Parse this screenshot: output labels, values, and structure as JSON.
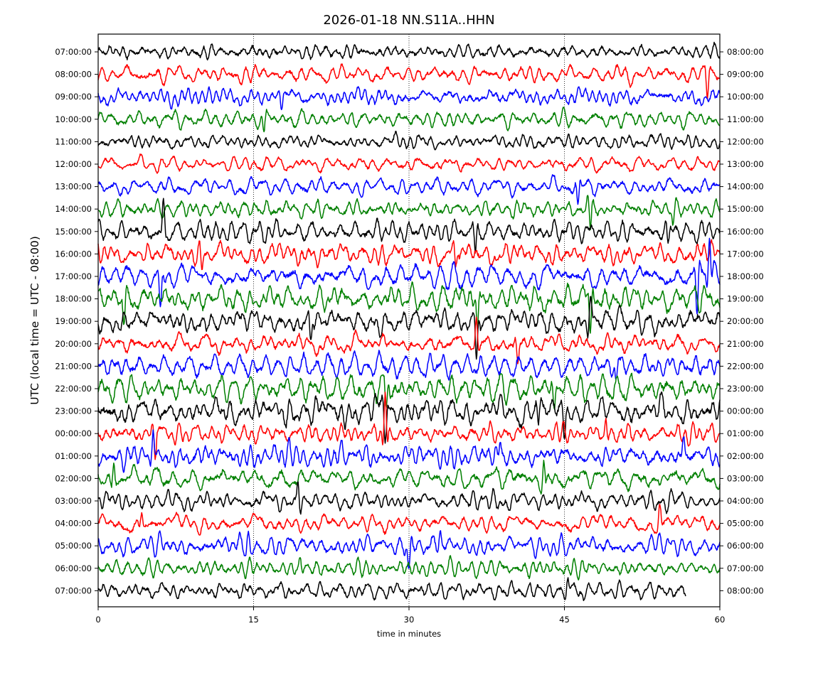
{
  "chart_data": {
    "type": "line",
    "title": "2026-01-18 NN.S11A..HHN",
    "xlabel": "time in minutes",
    "ylabel": "UTC (local time = UTC - 08:00)",
    "xlim": [
      0,
      60
    ],
    "x_ticks": [
      "0",
      "15",
      "30",
      "45",
      "60"
    ],
    "x_tick_values": [
      0,
      15,
      30,
      45,
      60
    ],
    "vertical_gridlines_at": [
      15,
      30,
      45
    ],
    "grid": "dotted vertical lines",
    "left_tick_labels": [
      "07:00:00",
      "08:00:00",
      "09:00:00",
      "10:00:00",
      "11:00:00",
      "12:00:00",
      "13:00:00",
      "14:00:00",
      "15:00:00",
      "16:00:00",
      "17:00:00",
      "18:00:00",
      "19:00:00",
      "20:00:00",
      "21:00:00",
      "22:00:00",
      "23:00:00",
      "00:00:00",
      "01:00:00",
      "02:00:00",
      "03:00:00",
      "04:00:00",
      "05:00:00",
      "06:00:00",
      "07:00:00"
    ],
    "right_tick_labels": [
      "08:00:00",
      "09:00:00",
      "10:00:00",
      "11:00:00",
      "12:00:00",
      "13:00:00",
      "14:00:00",
      "15:00:00",
      "16:00:00",
      "17:00:00",
      "18:00:00",
      "19:00:00",
      "20:00:00",
      "21:00:00",
      "22:00:00",
      "23:00:00",
      "00:00:00",
      "01:00:00",
      "02:00:00",
      "03:00:00",
      "04:00:00",
      "05:00:00",
      "06:00:00",
      "07:00:00",
      "08:00:00"
    ],
    "trace_colors": [
      "#000000",
      "#ff0000",
      "#0000ff",
      "#008000"
    ],
    "traces": [
      {
        "color": "#000000",
        "end_minute": 60,
        "amplitude": 0.35,
        "events": []
      },
      {
        "color": "#ff0000",
        "end_minute": 60,
        "amplitude": 0.35,
        "events": [
          {
            "t": 58.8,
            "a": -0.9
          }
        ]
      },
      {
        "color": "#0000ff",
        "end_minute": 60,
        "amplitude": 0.35,
        "events": [
          {
            "t": 17.7,
            "a": -0.5
          }
        ]
      },
      {
        "color": "#008000",
        "end_minute": 60,
        "amplitude": 0.35,
        "events": [
          {
            "t": 16.0,
            "a": -0.6
          }
        ]
      },
      {
        "color": "#000000",
        "end_minute": 60,
        "amplitude": 0.3,
        "events": []
      },
      {
        "color": "#ff0000",
        "end_minute": 60,
        "amplitude": 0.3,
        "events": []
      },
      {
        "color": "#0000ff",
        "end_minute": 60,
        "amplitude": 0.35,
        "events": [
          {
            "t": 46.3,
            "a": -0.8
          }
        ]
      },
      {
        "color": "#008000",
        "end_minute": 60,
        "amplitude": 0.35,
        "events": [
          {
            "t": 47.5,
            "a": -1.0
          },
          {
            "t": 55.5,
            "a": -0.5
          }
        ]
      },
      {
        "color": "#000000",
        "end_minute": 60,
        "amplitude": 0.45,
        "events": [
          {
            "t": 6.3,
            "a": 1.0
          },
          {
            "t": 36.4,
            "a": -1.0
          },
          {
            "t": 55.0,
            "a": -0.8
          }
        ]
      },
      {
        "color": "#ff0000",
        "end_minute": 60,
        "amplitude": 0.45,
        "events": [
          {
            "t": 10.0,
            "a": -0.7
          },
          {
            "t": 34.5,
            "a": -0.8
          }
        ]
      },
      {
        "color": "#0000ff",
        "end_minute": 60,
        "amplitude": 0.5,
        "events": [
          {
            "t": 6.0,
            "a": -1.2
          },
          {
            "t": 57.8,
            "a": -1.6
          },
          {
            "t": 59.0,
            "a": 1.6
          }
        ]
      },
      {
        "color": "#008000",
        "end_minute": 60,
        "amplitude": 0.55,
        "events": [
          {
            "t": 2.5,
            "a": -1.0
          },
          {
            "t": 36.6,
            "a": -1.2
          },
          {
            "t": 47.5,
            "a": -1.5
          }
        ]
      },
      {
        "color": "#000000",
        "end_minute": 60,
        "amplitude": 0.5,
        "events": [
          {
            "t": 20.5,
            "a": -1.0
          },
          {
            "t": 36.5,
            "a": -1.3
          },
          {
            "t": 47.5,
            "a": 1.0
          }
        ]
      },
      {
        "color": "#ff0000",
        "end_minute": 60,
        "amplitude": 0.4,
        "events": [
          {
            "t": 36.5,
            "a": 1.0
          },
          {
            "t": 40.5,
            "a": -0.8
          }
        ]
      },
      {
        "color": "#0000ff",
        "end_minute": 60,
        "amplitude": 0.5,
        "events": [
          {
            "t": 50.0,
            "a": -0.7
          }
        ]
      },
      {
        "color": "#008000",
        "end_minute": 60,
        "amplitude": 0.55,
        "events": [
          {
            "t": 27.8,
            "a": -1.0
          },
          {
            "t": 44.0,
            "a": -0.8
          }
        ]
      },
      {
        "color": "#000000",
        "end_minute": 60,
        "amplitude": 0.55,
        "events": [
          {
            "t": 27.7,
            "a": -1.0
          },
          {
            "t": 42.5,
            "a": -0.8
          },
          {
            "t": 45.0,
            "a": -1.0
          }
        ]
      },
      {
        "color": "#ff0000",
        "end_minute": 60,
        "amplitude": 0.4,
        "events": [
          {
            "t": 5.5,
            "a": -0.9
          },
          {
            "t": 27.7,
            "a": 2.0
          },
          {
            "t": 49.0,
            "a": 0.6
          }
        ]
      },
      {
        "color": "#0000ff",
        "end_minute": 60,
        "amplitude": 0.45,
        "events": [
          {
            "t": 5.3,
            "a": 0.9
          },
          {
            "t": 38.8,
            "a": 0.6
          },
          {
            "t": 56.5,
            "a": 0.6
          }
        ]
      },
      {
        "color": "#008000",
        "end_minute": 60,
        "amplitude": 0.45,
        "events": [
          {
            "t": 1.5,
            "a": 0.8
          },
          {
            "t": 43.0,
            "a": 0.9
          }
        ]
      },
      {
        "color": "#000000",
        "end_minute": 60,
        "amplitude": 0.35,
        "events": [
          {
            "t": 19.3,
            "a": 0.9
          }
        ]
      },
      {
        "color": "#ff0000",
        "end_minute": 60,
        "amplitude": 0.35,
        "events": [
          {
            "t": 4.2,
            "a": 0.5
          },
          {
            "t": 54.2,
            "a": 0.7
          }
        ]
      },
      {
        "color": "#0000ff",
        "end_minute": 60,
        "amplitude": 0.4,
        "events": [
          {
            "t": 14.5,
            "a": 0.5
          },
          {
            "t": 30.0,
            "a": -0.9
          },
          {
            "t": 33.0,
            "a": 0.5
          }
        ]
      },
      {
        "color": "#008000",
        "end_minute": 60,
        "amplitude": 0.35,
        "events": [
          {
            "t": 19.5,
            "a": 0.4
          }
        ]
      },
      {
        "color": "#000000",
        "end_minute": 56.7,
        "amplitude": 0.35,
        "events": [
          {
            "t": 45.3,
            "a": 0.5
          }
        ]
      }
    ]
  }
}
